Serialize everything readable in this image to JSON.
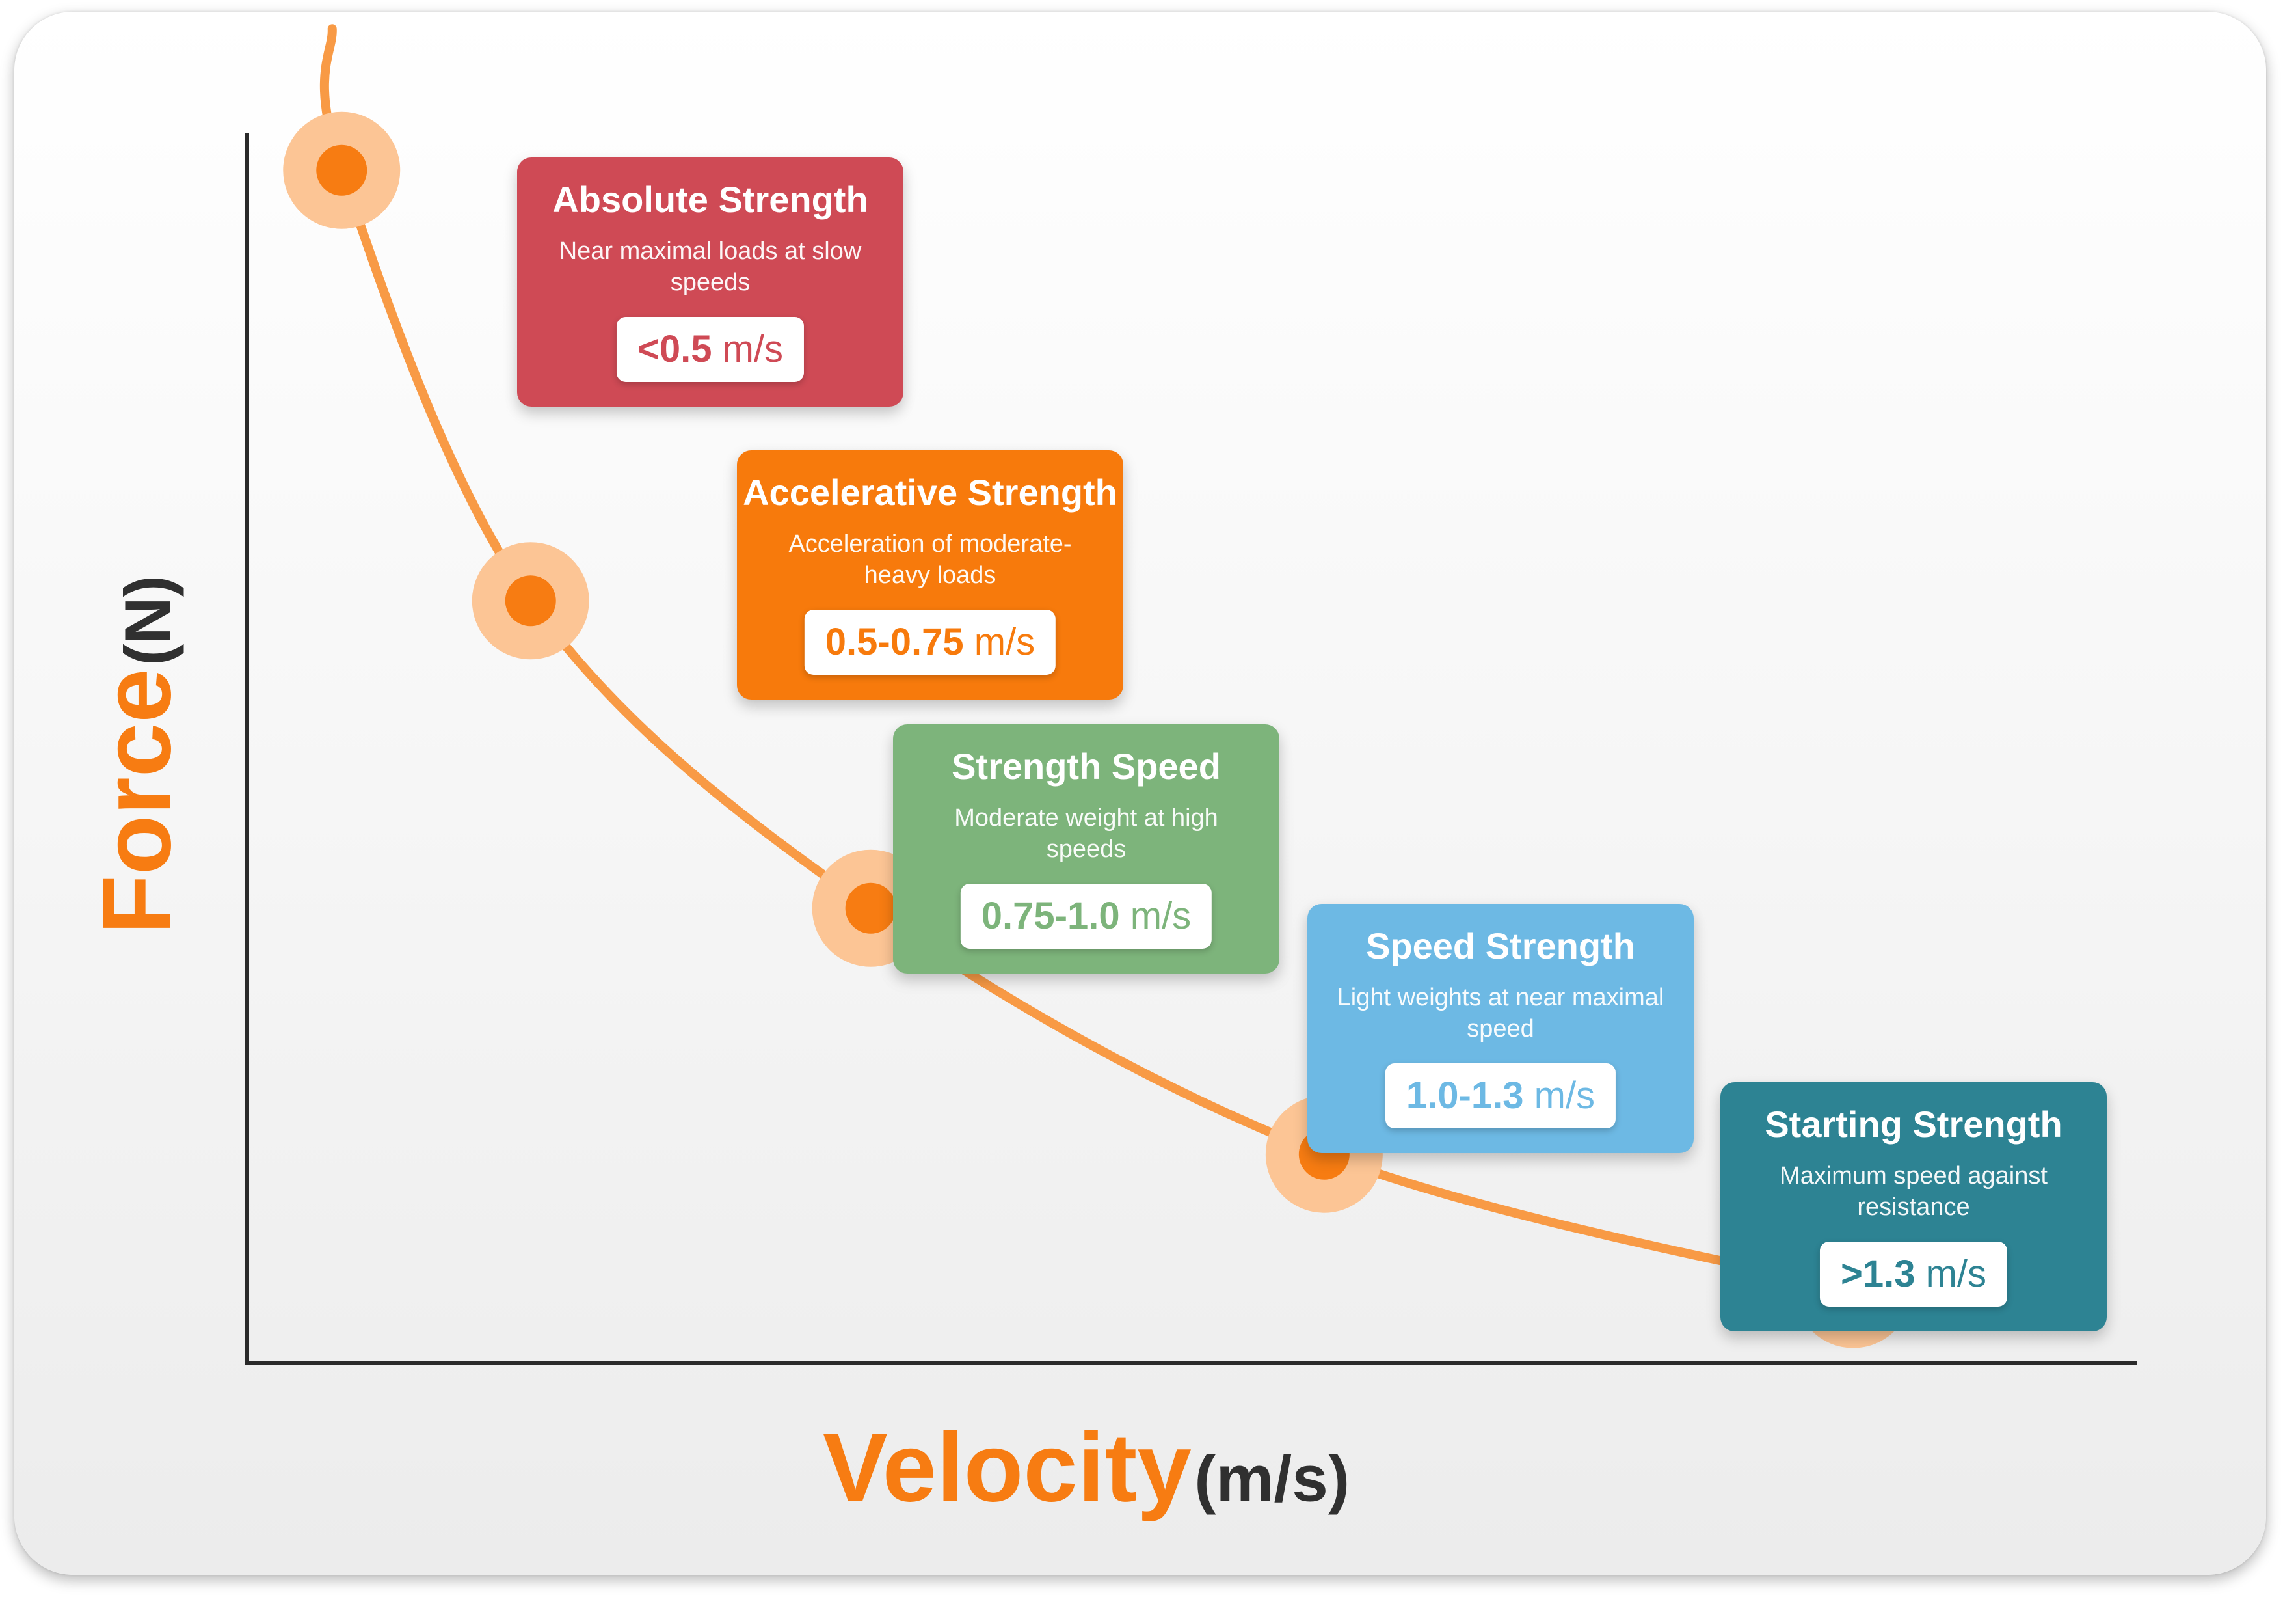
{
  "chart_data": {
    "type": "line",
    "xlabel": "Velocity",
    "xunit": "(m/s)",
    "ylabel": "Force",
    "yunit": "(N)",
    "colors": {
      "curve": "#f89a45",
      "marker_outer": "#fcc595",
      "marker_inner": "#f77c12",
      "axis": "#2a2a2a"
    },
    "series": [
      {
        "points": [
          {
            "x": 0.05,
            "y": 0.97
          },
          {
            "x": 0.15,
            "y": 0.62
          },
          {
            "x": 0.33,
            "y": 0.37
          },
          {
            "x": 0.57,
            "y": 0.17
          },
          {
            "x": 0.85,
            "y": 0.06
          }
        ]
      }
    ],
    "zones": [
      {
        "title": "Absolute Strength",
        "description": "Near maximal loads at slow speeds",
        "range_value": "<0.5",
        "range_unit": "m/s",
        "color": "#cf4a55"
      },
      {
        "title": "Accelerative Strength",
        "description": "Acceleration of moderate-heavy loads",
        "range_value": "0.5-0.75",
        "range_unit": "m/s",
        "color": "#f77a0c"
      },
      {
        "title": "Strength Speed",
        "description": "Moderate weight at high speeds",
        "range_value": "0.75-1.0",
        "range_unit": "m/s",
        "color": "#7db47b"
      },
      {
        "title": "Speed Strength",
        "description": "Light weights at near maximal speed",
        "range_value": "1.0-1.3",
        "range_unit": "m/s",
        "color": "#6db9e4"
      },
      {
        "title": "Starting Strength",
        "description": "Maximum speed against resistance",
        "range_value": ">1.3",
        "range_unit": "m/s",
        "color": "#2d8393"
      }
    ]
  }
}
